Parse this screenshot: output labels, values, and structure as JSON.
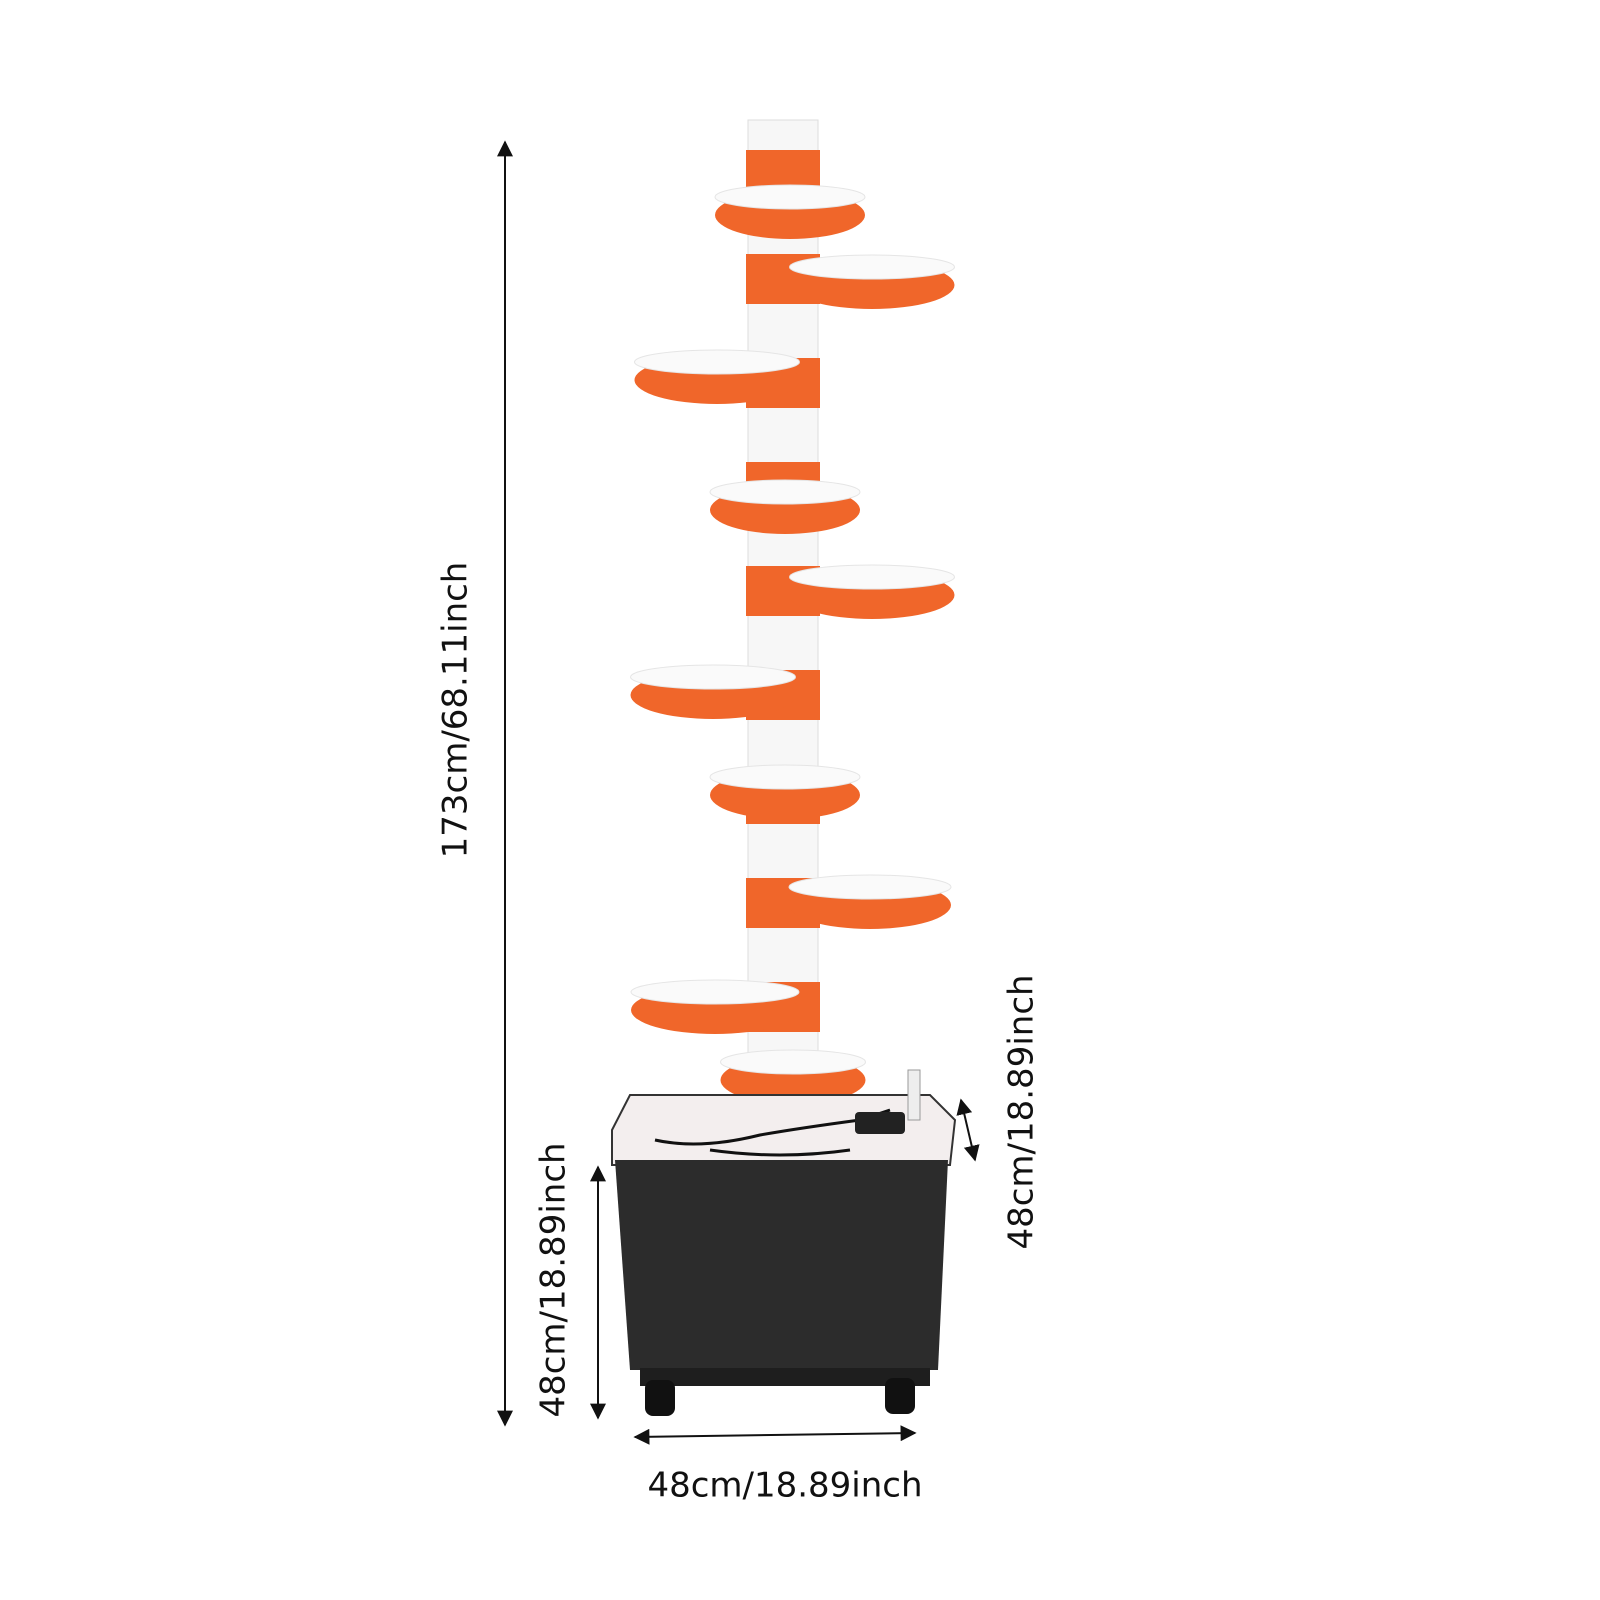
{
  "dimensions": {
    "total_height": "173cm/68.11inch",
    "base_height": "48cm/18.89inch",
    "depth": "48cm/18.89inch",
    "width": "48cm/18.89inch"
  }
}
